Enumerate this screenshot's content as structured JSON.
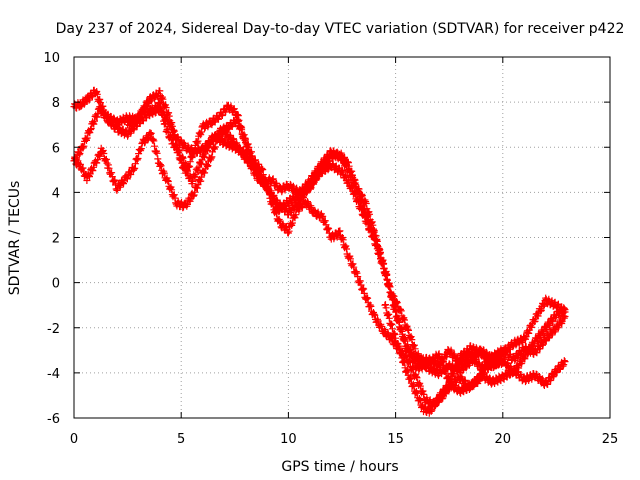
{
  "chart_data": {
    "type": "scatter",
    "title": "Day 237 of 2024, Sidereal Day-to-day VTEC variation (SDTVAR) for receiver p422",
    "xlabel": "GPS time / hours",
    "ylabel": "SDTVAR / TECUs",
    "xlim": [
      0,
      25
    ],
    "ylim": [
      -6,
      10
    ],
    "xticks": [
      0,
      5,
      10,
      15,
      20,
      25
    ],
    "yticks": [
      -6,
      -4,
      -2,
      0,
      2,
      4,
      6,
      8,
      10
    ],
    "grid": true,
    "marker": "+",
    "color": "#ff0000",
    "series": [
      {
        "x": [
          0.0,
          0.3,
          0.6,
          0.8,
          1.0,
          1.2,
          1.5,
          2.0,
          2.5,
          3.0,
          3.3,
          3.6,
          4.0,
          4.3,
          4.6,
          5.0,
          5.3,
          5.6,
          6.0,
          6.4,
          6.8,
          7.2,
          7.6,
          8.0,
          8.4,
          8.8,
          9.2,
          9.6,
          10.0,
          10.5,
          11.0,
          11.5,
          12.0,
          12.4,
          12.8,
          13.2,
          13.6,
          14.0,
          14.4,
          14.8,
          15.2,
          15.6,
          16.0,
          16.5,
          17.0,
          17.5,
          18.0,
          18.5,
          19.0,
          19.5,
          20.0,
          20.5,
          21.0,
          21.5,
          22.0,
          22.5,
          22.9
        ],
        "y": [
          7.8,
          7.9,
          8.1,
          8.3,
          8.5,
          8.0,
          7.4,
          7.1,
          7.3,
          7.2,
          7.8,
          7.6,
          7.9,
          6.8,
          6.2,
          5.6,
          5.0,
          5.9,
          6.9,
          7.1,
          7.4,
          7.8,
          7.5,
          6.1,
          5.2,
          4.3,
          4.6,
          4.1,
          4.3,
          4.0,
          4.2,
          5.0,
          5.6,
          5.7,
          5.2,
          4.2,
          3.5,
          2.3,
          0.8,
          -0.5,
          -1.2,
          -2.2,
          -3.2,
          -3.8,
          -4.0,
          -3.7,
          -3.9,
          -3.5,
          -3.0,
          -3.4,
          -3.1,
          -2.7,
          -2.5,
          -1.6,
          -0.8,
          -1.0,
          -1.3
        ]
      },
      {
        "x": [
          0.0,
          0.4,
          0.8,
          1.2,
          1.6,
          2.0,
          2.5,
          3.0,
          3.5,
          4.0,
          4.4,
          4.8,
          5.2,
          5.6,
          6.0,
          6.5,
          7.0,
          7.5,
          8.0,
          8.5,
          9.0,
          9.5,
          10.0,
          10.5,
          11.0,
          11.5,
          12.0,
          12.5,
          13.0,
          13.5,
          14.0,
          14.5,
          15.0,
          15.5,
          16.0,
          16.5,
          17.0,
          17.5,
          18.0,
          18.5,
          19.0,
          19.5,
          20.0,
          20.5,
          21.0,
          21.5,
          22.0,
          22.5,
          22.9
        ],
        "y": [
          5.4,
          6.0,
          6.9,
          7.7,
          7.2,
          6.8,
          6.6,
          7.1,
          7.5,
          7.7,
          7.1,
          6.4,
          6.0,
          5.8,
          5.9,
          6.4,
          6.7,
          6.2,
          5.5,
          5.0,
          4.2,
          3.5,
          3.1,
          3.6,
          4.3,
          4.9,
          5.2,
          4.9,
          4.1,
          3.0,
          1.9,
          0.5,
          -1.4,
          -2.8,
          -3.5,
          -3.4,
          -3.7,
          -3.0,
          -3.6,
          -3.2,
          -3.8,
          -3.3,
          -3.0,
          -3.4,
          -2.9,
          -3.1,
          -2.5,
          -2.0,
          -1.5
        ]
      },
      {
        "x": [
          0.0,
          0.3,
          0.6,
          1.0,
          1.3,
          1.6,
          2.0,
          2.4,
          2.8,
          3.2,
          3.6,
          4.0,
          4.4,
          4.8,
          5.2,
          5.6,
          6.0,
          6.4,
          6.8,
          7.2,
          7.6,
          8.0,
          8.4,
          8.8,
          9.2,
          9.6,
          10.0,
          10.4,
          10.8,
          11.2,
          11.6,
          12.0,
          12.4,
          12.8,
          13.2,
          13.6,
          14.0,
          14.4,
          14.8,
          15.2,
          15.6,
          16.0,
          16.4,
          16.8,
          17.2,
          17.6,
          18.0,
          18.4,
          18.8,
          19.2,
          19.6,
          20.0
        ],
        "y": [
          5.4,
          5.2,
          4.6,
          5.3,
          5.9,
          5.1,
          4.2,
          4.6,
          5.1,
          6.2,
          6.6,
          5.2,
          4.4,
          3.5,
          3.4,
          4.0,
          4.8,
          5.6,
          6.7,
          6.9,
          7.2,
          6.3,
          5.4,
          4.9,
          3.6,
          2.6,
          2.3,
          3.2,
          3.6,
          3.1,
          2.9,
          2.0,
          2.2,
          1.2,
          0.3,
          -0.6,
          -1.5,
          -2.1,
          -2.5,
          -3.0,
          -3.5,
          -4.3,
          -5.2,
          -5.4,
          -5.0,
          -4.5,
          -4.2,
          -4.6,
          -4.4,
          -3.8,
          -3.6,
          -3.5
        ]
      },
      {
        "x": [
          2.5,
          3.0,
          3.5,
          4.0,
          4.5,
          5.0,
          5.5,
          6.0,
          6.5,
          7.0,
          7.5,
          8.0,
          8.5,
          9.0,
          9.5,
          10.0,
          10.5,
          11.0,
          11.5,
          12.0,
          12.5,
          13.0,
          13.5,
          14.0,
          14.5,
          15.0,
          15.5,
          16.0,
          16.5,
          17.0,
          17.5,
          18.0,
          18.5,
          19.0,
          19.5,
          20.0,
          20.5,
          21.0,
          21.5,
          22.0,
          22.5,
          22.9
        ],
        "y": [
          7.0,
          7.3,
          8.1,
          8.4,
          7.2,
          5.3,
          4.5,
          5.5,
          6.5,
          6.2,
          6.0,
          5.7,
          4.7,
          4.3,
          3.2,
          3.6,
          3.9,
          4.5,
          5.2,
          5.8,
          5.5,
          4.6,
          3.3,
          2.2,
          0.6,
          -1.2,
          -2.9,
          -3.8,
          -3.6,
          -3.2,
          -4.4,
          -3.3,
          -2.9,
          -3.1,
          -3.7,
          -3.4,
          -4.0,
          -3.3,
          -2.6,
          -2.0,
          -1.4,
          -1.2
        ]
      },
      {
        "x": [
          14.5,
          15.0,
          15.5,
          16.0,
          16.3,
          16.6,
          17.0,
          17.5,
          18.0,
          18.5,
          19.0,
          19.5,
          20.0,
          20.5,
          21.0,
          21.5,
          22.0,
          22.5,
          22.9
        ],
        "y": [
          -1.0,
          -2.5,
          -3.9,
          -5.0,
          -5.6,
          -5.7,
          -5.1,
          -4.5,
          -4.8,
          -4.6,
          -4.1,
          -4.4,
          -4.2,
          -3.9,
          -4.3,
          -4.1,
          -4.5,
          -3.9,
          -3.5
        ]
      }
    ]
  }
}
